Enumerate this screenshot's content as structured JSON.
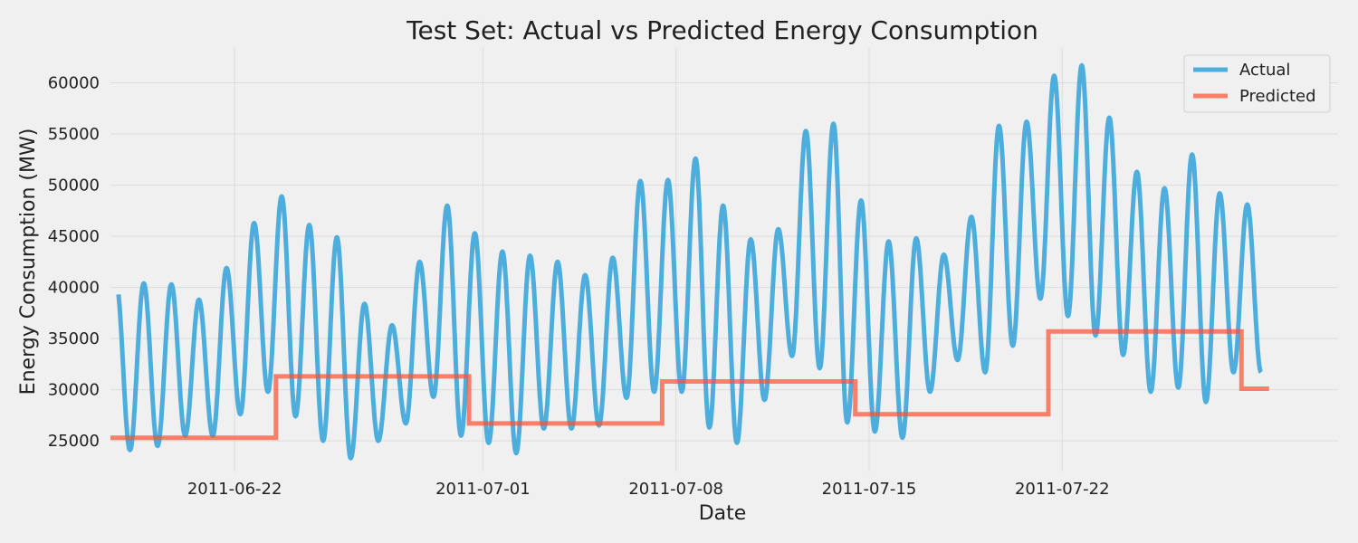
{
  "chart_data": {
    "type": "line",
    "title": "Test Set: Actual vs Predicted Energy Consumption",
    "xlabel": "Date",
    "ylabel": "Energy Consumption (MW)",
    "x_ticks": [
      "2011-06-22",
      "2011-07-01",
      "2011-07-08",
      "2011-07-15",
      "2011-07-22"
    ],
    "y_ticks": [
      25000,
      30000,
      35000,
      40000,
      45000,
      50000,
      55000,
      60000
    ],
    "xlim": [
      "2011-06-17T12:00",
      "2011-08-01T00:00"
    ],
    "ylim": [
      22000,
      63500
    ],
    "grid": true,
    "legend_position": "top-right",
    "colors": {
      "actual": "#30a2da",
      "predicted": "#fc4f30"
    },
    "series": [
      {
        "name": "Actual",
        "key": "actual",
        "daily_max": [
          40400,
          40300,
          38800,
          41900,
          46300,
          48900,
          46100,
          44900,
          38400,
          36300,
          42500,
          48000,
          45300,
          43500,
          43100,
          42500,
          41200,
          42900,
          50400,
          50500,
          52600,
          48000,
          44700,
          45700,
          55300,
          56000,
          48500,
          44500,
          44800,
          43200,
          46900,
          55800,
          56200,
          60700,
          61700,
          56600,
          51300,
          49700,
          53000,
          49200,
          48100
        ],
        "daily_min": [
          24100,
          24500,
          25500,
          25500,
          27600,
          29800,
          27400,
          25000,
          23300,
          25000,
          26700,
          29300,
          25500,
          24800,
          23800,
          26200,
          26200,
          26500,
          29200,
          29800,
          29800,
          26300,
          24800,
          29000,
          33300,
          32100,
          26800,
          25900,
          25300,
          29800,
          32900,
          31700,
          34300,
          38900,
          37200,
          35300,
          33400,
          29800,
          30200,
          28800,
          31700
        ]
      },
      {
        "name": "Predicted",
        "key": "predicted",
        "steps": [
          {
            "from": "2011-06-17T12:00",
            "to": "2011-06-23T12:00",
            "value": 25300
          },
          {
            "from": "2011-06-23T12:00",
            "to": "2011-06-30T12:00",
            "value": 31300
          },
          {
            "from": "2011-06-30T12:00",
            "to": "2011-07-07T12:00",
            "value": 26700
          },
          {
            "from": "2011-07-07T12:00",
            "to": "2011-07-14T12:00",
            "value": 30800
          },
          {
            "from": "2011-07-14T12:00",
            "to": "2011-07-21T12:00",
            "value": 27600
          },
          {
            "from": "2011-07-21T12:00",
            "to": "2011-07-28T12:00",
            "value": 35700
          },
          {
            "from": "2011-07-28T12:00",
            "to": "2011-07-29T12:00",
            "value": 30100
          }
        ]
      }
    ]
  }
}
